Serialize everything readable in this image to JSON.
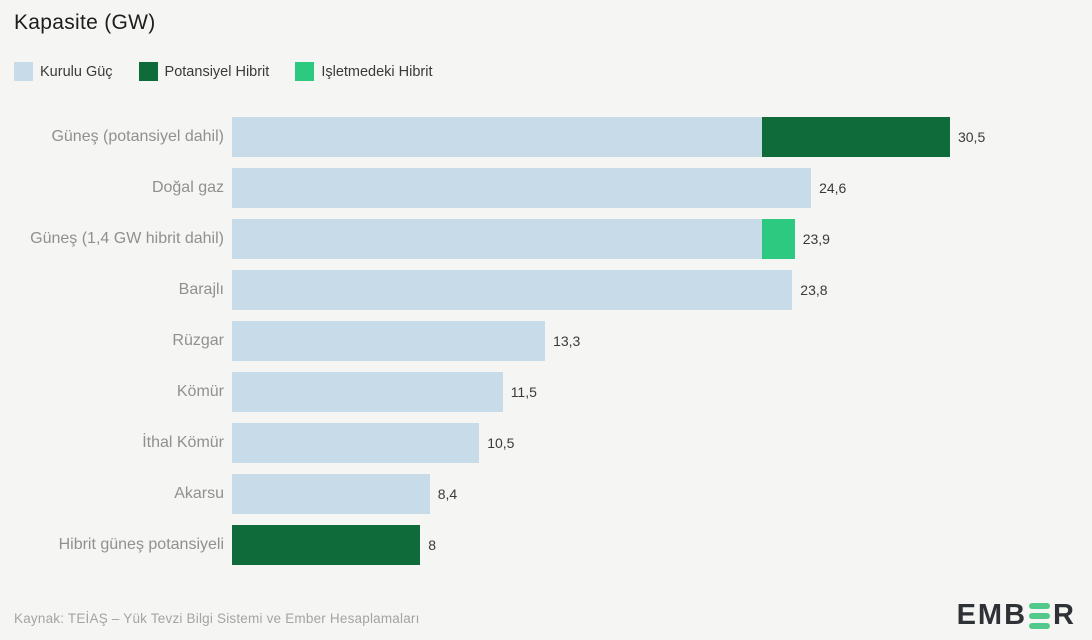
{
  "chart_data": {
    "type": "bar",
    "orientation": "horizontal",
    "title": "Kapasite (GW)",
    "unit": "GW",
    "xlim": [
      0,
      30.5
    ],
    "grid": false,
    "legend_position": "top",
    "legend": [
      {
        "label": "Kurulu Güç",
        "color": "#c7dbe9"
      },
      {
        "label": "Potansiyel Hibrit",
        "color": "#0f6b3a"
      },
      {
        "label": "Işletmedeki Hibrit",
        "color": "#2dc980"
      }
    ],
    "categories": [
      "Güneş (potansiyel dahil)",
      "Doğal gaz",
      "Güneş (1,4 GW hibrit dahil)",
      "Barajlı",
      "Rüzgar",
      "Kömür",
      "İthal Kömür",
      "Akarsu",
      "Hibrit güneş potansiyeli"
    ],
    "rows": [
      {
        "label": "Güneş (potansiyel dahil)",
        "total": 30.5,
        "value_label": "30,5",
        "segments": [
          {
            "series": "Kurulu Güç",
            "value": 22.5
          },
          {
            "series": "Potansiyel Hibrit",
            "value": 8
          }
        ]
      },
      {
        "label": "Doğal gaz",
        "total": 24.6,
        "value_label": "24,6",
        "segments": [
          {
            "series": "Kurulu Güç",
            "value": 24.6
          }
        ]
      },
      {
        "label": "Güneş (1,4 GW hibrit dahil)",
        "total": 23.9,
        "value_label": "23,9",
        "segments": [
          {
            "series": "Kurulu Güç",
            "value": 22.5
          },
          {
            "series": "Işletmedeki Hibrit",
            "value": 1.4
          }
        ]
      },
      {
        "label": "Barajlı",
        "total": 23.8,
        "value_label": "23,8",
        "segments": [
          {
            "series": "Kurulu Güç",
            "value": 23.8
          }
        ]
      },
      {
        "label": "Rüzgar",
        "total": 13.3,
        "value_label": "13,3",
        "segments": [
          {
            "series": "Kurulu Güç",
            "value": 13.3
          }
        ]
      },
      {
        "label": "Kömür",
        "total": 11.5,
        "value_label": "11,5",
        "segments": [
          {
            "series": "Kurulu Güç",
            "value": 11.5
          }
        ]
      },
      {
        "label": "İthal Kömür",
        "total": 10.5,
        "value_label": "10,5",
        "segments": [
          {
            "series": "Kurulu Güç",
            "value": 10.5
          }
        ]
      },
      {
        "label": "Akarsu",
        "total": 8.4,
        "value_label": "8,4",
        "segments": [
          {
            "series": "Kurulu Güç",
            "value": 8.4
          }
        ]
      },
      {
        "label": "Hibrit güneş potansiyeli",
        "total": 8,
        "value_label": "8",
        "segments": [
          {
            "series": "Potansiyel Hibrit",
            "value": 8
          }
        ]
      }
    ]
  },
  "source": "Kaynak: TEİAŞ – Yük Tevzi Bilgi Sistemi ve Ember Hesaplamaları",
  "logo": {
    "name": "EMBER",
    "text_before_e": "EMB",
    "text_after_e": "R"
  },
  "colors": {
    "background": "#f5f5f3",
    "bar_kurulu_guc": "#c7dbe9",
    "bar_potansiyel_hibrit": "#0f6b3a",
    "bar_isletmedeki_hibrit": "#2dc980",
    "title_text": "#1d1d1b",
    "category_text": "#90908e",
    "value_text": "#3a3a38",
    "source_text": "#a4a4a2",
    "logo_dark": "#2e3236",
    "logo_green": "#52c98b"
  }
}
